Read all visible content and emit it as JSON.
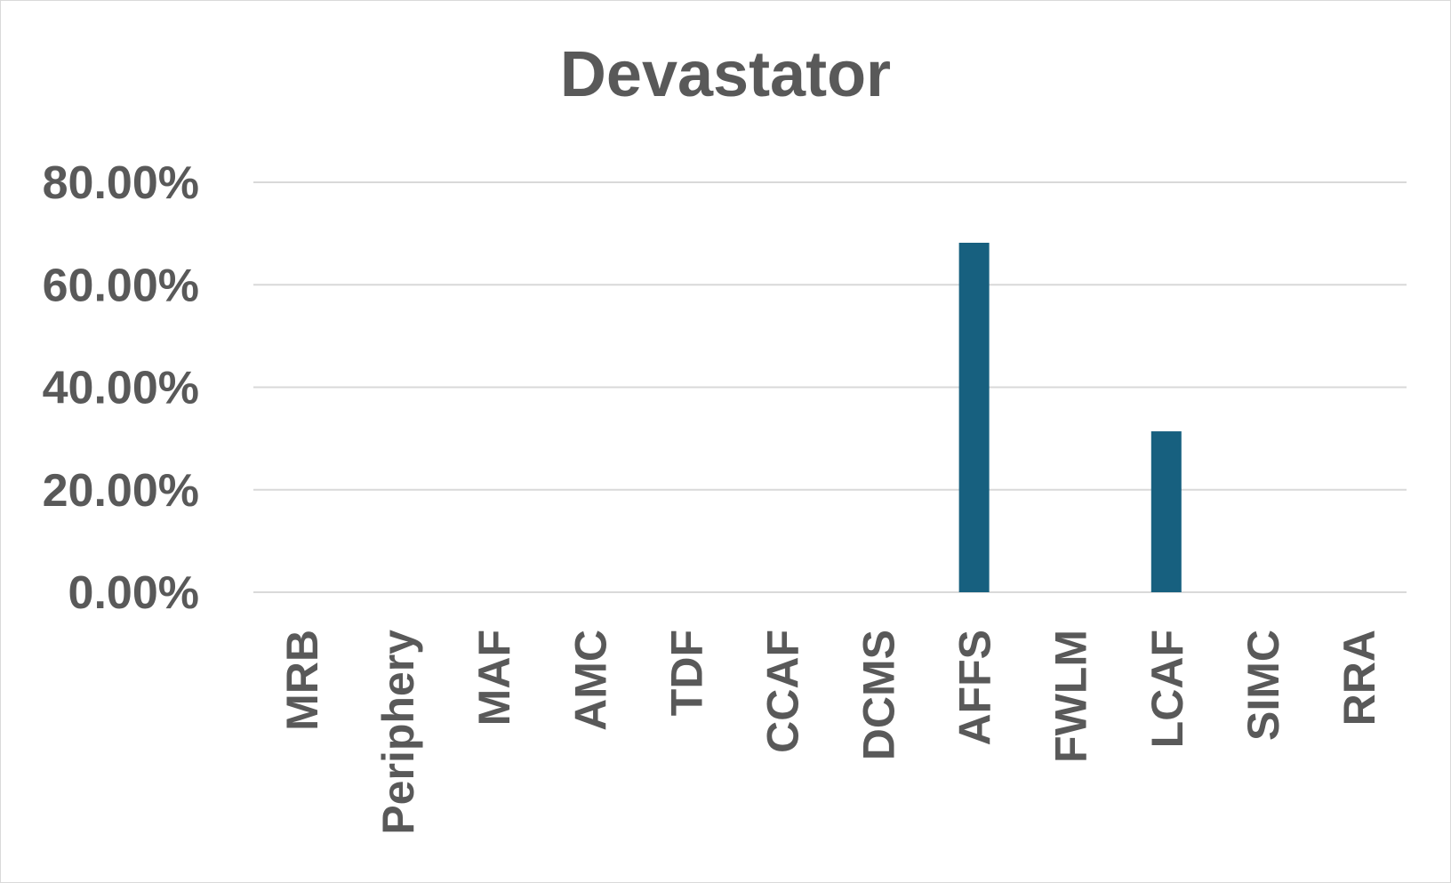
{
  "chart_data": {
    "type": "bar",
    "title": "Devastator",
    "xlabel": "",
    "ylabel": "",
    "categories": [
      "MRB",
      "Periphery",
      "MAF",
      "AMC",
      "TDF",
      "CCAF",
      "DCMS",
      "AFFS",
      "FWLM",
      "LCAF",
      "SIMC",
      "RRA"
    ],
    "values": [
      0,
      0,
      0,
      0,
      0,
      0,
      0,
      68.2,
      0,
      31.4,
      0,
      0
    ],
    "ylim": [
      0,
      80
    ],
    "yticks": [
      0,
      20,
      40,
      60,
      80
    ],
    "ytick_labels": [
      "0.00%",
      "20.00%",
      "40.00%",
      "60.00%",
      "80.00%"
    ],
    "grid": true,
    "legend": "none",
    "colors": {
      "bar": "#17607f",
      "grid": "#d9d9d9",
      "text": "#595959"
    }
  }
}
